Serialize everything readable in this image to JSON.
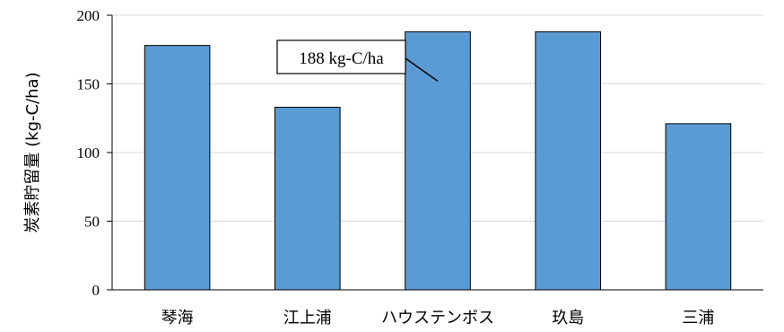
{
  "chart_data": {
    "type": "bar",
    "categories": [
      "琴海",
      "江上浦",
      "ハウステンボス",
      "玖島",
      "三浦"
    ],
    "values": [
      178,
      133,
      188,
      188,
      121
    ],
    "ylabel": "炭素貯留量 (kg-C/ha)",
    "ylim": [
      0,
      200
    ],
    "yticks": [
      0,
      50,
      100,
      150,
      200
    ],
    "grid": true,
    "bar_color": "#5b9bd5",
    "annotation": {
      "text": "188 kg-C/ha",
      "target_category": "ハウステンボス"
    }
  }
}
